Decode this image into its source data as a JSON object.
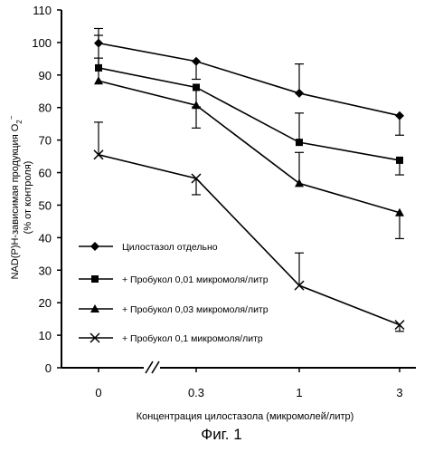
{
  "chart_data": {
    "type": "line",
    "x": [
      "0",
      "0.3",
      "1",
      "3"
    ],
    "xlabel": "Концентрация цилостазола (микромолей/литр)",
    "ylabel_line1": "NAD(P)H-зависимая продукция O",
    "ylabel_sub": "2",
    "ylabel_sup": "−",
    "ylabel_line2": "(% от контроля)",
    "ylim": [
      0,
      110
    ],
    "yticks": [
      0,
      10,
      20,
      30,
      40,
      50,
      60,
      70,
      80,
      90,
      100,
      110
    ],
    "axis_break": "//",
    "legend_placement": "lower-left",
    "series": [
      {
        "name": "Цилостазол отдельно",
        "marker": "diamond",
        "values": [
          99.8,
          94.2,
          84.4,
          77.5
        ],
        "errors": [
          4.5,
          5.5,
          9.0,
          6.0
        ]
      },
      {
        "name": "+ Пробукол 0,01 микромоля/литр",
        "marker": "square",
        "values": [
          92.2,
          86.2,
          69.3,
          63.8
        ],
        "errors": [
          10.0,
          6.0,
          9.0,
          4.5
        ]
      },
      {
        "name": "+ Пробукол 0,03 микромоля/литр",
        "marker": "triangle",
        "values": [
          88.2,
          80.7,
          56.7,
          47.7
        ],
        "errors": [
          7.0,
          7.0,
          9.5,
          8.0
        ]
      },
      {
        "name": "+ Пробукол 0,1 микромоля/литр",
        "marker": "x",
        "values": [
          65.5,
          58.2,
          25.3,
          13.2
        ],
        "errors": [
          10.0,
          5.0,
          10.0,
          2.0
        ]
      }
    ]
  },
  "caption": "Фиг. 1"
}
